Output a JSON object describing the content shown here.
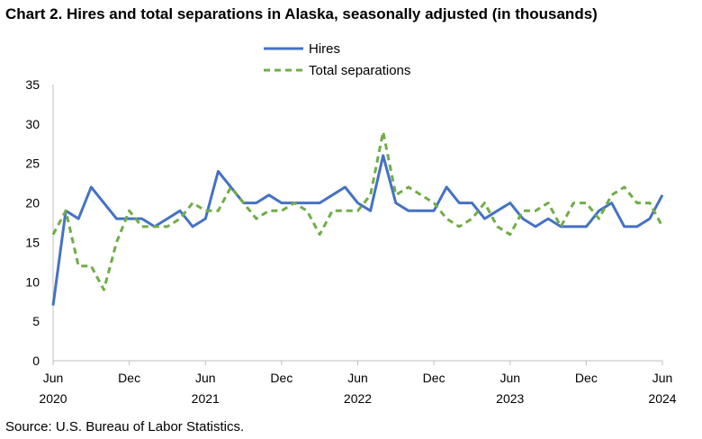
{
  "chart_data": {
    "type": "line",
    "title": "Chart 2. Hires and total separations in Alaska, seasonally adjusted (in thousands)",
    "source": "Source: U.S. Bureau of Labor Statistics.",
    "xlabel": "",
    "ylabel": "",
    "ylim": [
      0,
      35
    ],
    "yticks": [
      0,
      5,
      10,
      15,
      20,
      25,
      30,
      35
    ],
    "grid": false,
    "legend_position": "top-center",
    "x_tick_labels": [
      {
        "index": 0,
        "month": "Jun",
        "year": "2020"
      },
      {
        "index": 6,
        "month": "Dec",
        "year": ""
      },
      {
        "index": 12,
        "month": "Jun",
        "year": "2021"
      },
      {
        "index": 18,
        "month": "Dec",
        "year": ""
      },
      {
        "index": 24,
        "month": "Jun",
        "year": "2022"
      },
      {
        "index": 30,
        "month": "Dec",
        "year": ""
      },
      {
        "index": 36,
        "month": "Jun",
        "year": "2023"
      },
      {
        "index": 42,
        "month": "Dec",
        "year": ""
      },
      {
        "index": 48,
        "month": "Jun",
        "year": "2024"
      }
    ],
    "series": [
      {
        "name": "Hires",
        "color": "#4472C4",
        "style": "solid",
        "values": [
          7,
          19,
          18,
          22,
          20,
          18,
          18,
          18,
          17,
          18,
          19,
          17,
          18,
          24,
          22,
          20,
          20,
          21,
          20,
          20,
          20,
          20,
          21,
          22,
          20,
          19,
          26,
          20,
          19,
          19,
          19,
          22,
          20,
          20,
          18,
          19,
          20,
          18,
          17,
          18,
          17,
          17,
          17,
          19,
          20,
          17,
          17,
          18,
          21
        ]
      },
      {
        "name": "Total separations",
        "color": "#70AD47",
        "style": "dashed",
        "values": [
          16,
          19,
          12,
          12,
          9,
          15,
          19,
          17,
          17,
          17,
          18,
          20,
          19,
          19,
          22,
          20,
          18,
          19,
          19,
          20,
          19,
          16,
          19,
          19,
          19,
          21,
          29,
          21,
          22,
          21,
          20,
          18,
          17,
          18,
          20,
          17,
          16,
          19,
          19,
          20,
          17,
          20,
          20,
          18,
          21,
          22,
          20,
          20,
          17
        ]
      }
    ]
  }
}
